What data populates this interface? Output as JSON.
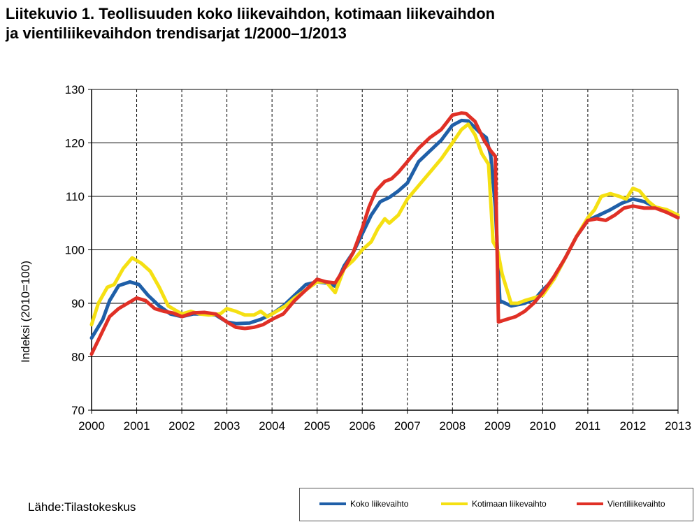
{
  "title_lines": [
    "Liitekuvio 1. Teollisuuden koko liikevaihdon, kotimaan liikevaihdon",
    "ja vientiliikevaihdon trendisarjat 1/2000–1/2013"
  ],
  "source": "Lähde:Tilastokeskus",
  "chart_data": {
    "type": "line",
    "title": "Liitekuvio 1. Teollisuuden koko liikevaihdon, kotimaan liikevaihdon ja vientiliikevaihdon trendisarjat 1/2000–1/2013",
    "ylabel": "Indeksi (2010=100)",
    "xlabel": "",
    "ylim": [
      70,
      130
    ],
    "yticks": [
      70,
      80,
      90,
      100,
      110,
      120,
      130
    ],
    "xlim": [
      2000,
      2013
    ],
    "xticks": [
      "2000",
      "2001",
      "2002",
      "2003",
      "2004",
      "2005",
      "2006",
      "2007",
      "2008",
      "2009",
      "2010",
      "2011",
      "2012",
      "2013"
    ],
    "grid": true,
    "legend_placement": "bottom-right",
    "series": [
      {
        "name": "Koko liikevaihto",
        "color": "#1f5fa8",
        "x": [
          2000.0,
          2000.25,
          2000.4,
          2000.6,
          2000.85,
          2001.05,
          2001.25,
          2001.5,
          2001.75,
          2002.0,
          2002.25,
          2002.5,
          2002.75,
          2003.0,
          2003.2,
          2003.5,
          2003.75,
          2004.0,
          2004.25,
          2004.5,
          2004.75,
          2005.0,
          2005.2,
          2005.4,
          2005.6,
          2005.8,
          2006.0,
          2006.2,
          2006.4,
          2006.6,
          2006.8,
          2007.0,
          2007.25,
          2007.5,
          2007.75,
          2008.0,
          2008.2,
          2008.35,
          2008.6,
          2008.75,
          2008.85,
          2008.95,
          2009.05,
          2009.3,
          2009.6,
          2009.85,
          2010.0,
          2010.25,
          2010.5,
          2010.75,
          2011.0,
          2011.25,
          2011.5,
          2011.75,
          2012.0,
          2012.25,
          2012.5,
          2012.75,
          2013.0
        ],
        "values": [
          83.5,
          87,
          90.5,
          93.3,
          94,
          93.5,
          91.5,
          89.5,
          88,
          87.5,
          88,
          88,
          87.8,
          86.5,
          86.2,
          86.3,
          87,
          88,
          89.5,
          91.5,
          93.5,
          94,
          93.8,
          93.2,
          97,
          99.5,
          103,
          106.5,
          109,
          109.8,
          111,
          112.5,
          116.5,
          118.5,
          120.5,
          123.3,
          124.2,
          124.1,
          122,
          121,
          117.5,
          108,
          90.5,
          89.5,
          90,
          91,
          92.5,
          94.5,
          98.5,
          102.5,
          105.5,
          106.5,
          107.5,
          108.7,
          109.5,
          109,
          108,
          107.3,
          106.2
        ]
      },
      {
        "name": "Kotimaan liikevaihto",
        "color": "#f5e012",
        "x": [
          2000.0,
          2000.15,
          2000.35,
          2000.5,
          2000.7,
          2000.9,
          2001.1,
          2001.3,
          2001.5,
          2001.7,
          2002.0,
          2002.2,
          2002.4,
          2002.6,
          2002.85,
          2003.0,
          2003.2,
          2003.4,
          2003.6,
          2003.75,
          2003.9,
          2004.1,
          2004.3,
          2004.5,
          2004.75,
          2005.0,
          2005.2,
          2005.4,
          2005.6,
          2005.8,
          2006.0,
          2006.2,
          2006.35,
          2006.5,
          2006.6,
          2006.8,
          2007.0,
          2007.25,
          2007.5,
          2007.75,
          2008.0,
          2008.2,
          2008.35,
          2008.5,
          2008.65,
          2008.8,
          2008.9,
          2009.0,
          2009.1,
          2009.3,
          2009.45,
          2009.6,
          2009.8,
          2010.0,
          2010.25,
          2010.5,
          2010.75,
          2011.0,
          2011.15,
          2011.3,
          2011.5,
          2011.7,
          2011.85,
          2012.0,
          2012.15,
          2012.35,
          2012.5,
          2012.75,
          2013.0
        ],
        "values": [
          86,
          90,
          93,
          93.5,
          96.5,
          98.5,
          97.5,
          96,
          93,
          89.5,
          88,
          88.5,
          88,
          87.8,
          88,
          89,
          88.5,
          87.8,
          87.8,
          88.5,
          87.5,
          88.5,
          89.5,
          91,
          92.5,
          94,
          94,
          92,
          96.5,
          98,
          100,
          101.5,
          104,
          105.8,
          105,
          106.5,
          109.5,
          112,
          114.5,
          117,
          120,
          122.5,
          123.5,
          121.5,
          118,
          116,
          101.5,
          100,
          95.5,
          90,
          90,
          90.5,
          91,
          91.5,
          94.5,
          98.5,
          102.5,
          106,
          107.5,
          110,
          110.5,
          110,
          109.5,
          111.5,
          111,
          109,
          108,
          107.5,
          106.5
        ]
      },
      {
        "name": "Vientiliikevaihto",
        "color": "#e03026",
        "x": [
          2000.0,
          2000.2,
          2000.4,
          2000.6,
          2000.8,
          2001.0,
          2001.2,
          2001.4,
          2001.6,
          2001.8,
          2002.0,
          2002.25,
          2002.5,
          2002.75,
          2003.0,
          2003.2,
          2003.4,
          2003.6,
          2003.8,
          2004.0,
          2004.25,
          2004.5,
          2004.75,
          2005.0,
          2005.2,
          2005.4,
          2005.6,
          2005.8,
          2006.0,
          2006.15,
          2006.3,
          2006.5,
          2006.65,
          2006.8,
          2007.0,
          2007.25,
          2007.5,
          2007.75,
          2008.0,
          2008.2,
          2008.3,
          2008.5,
          2008.7,
          2008.85,
          2008.95,
          2009.02,
          2009.2,
          2009.4,
          2009.6,
          2009.8,
          2010.0,
          2010.25,
          2010.5,
          2010.75,
          2011.0,
          2011.2,
          2011.4,
          2011.6,
          2011.8,
          2012.0,
          2012.25,
          2012.5,
          2012.75,
          2013.0
        ],
        "values": [
          80.5,
          84,
          87.5,
          89,
          90,
          91,
          90.5,
          89,
          88.5,
          88.2,
          87.5,
          88.2,
          88.3,
          88,
          86.5,
          85.5,
          85.3,
          85.5,
          86,
          87,
          88,
          90.5,
          92.5,
          94.5,
          94,
          93.8,
          96.5,
          99.5,
          104,
          108,
          111,
          112.8,
          113.3,
          114.5,
          116.5,
          119,
          121,
          122.5,
          125.2,
          125.6,
          125.5,
          124,
          120.5,
          118.5,
          117.5,
          86.5,
          87,
          87.5,
          88.5,
          90,
          92,
          95,
          98.5,
          102.5,
          105.5,
          105.8,
          105.5,
          106.5,
          107.8,
          108.2,
          107.8,
          107.8,
          107,
          106
        ]
      }
    ]
  }
}
